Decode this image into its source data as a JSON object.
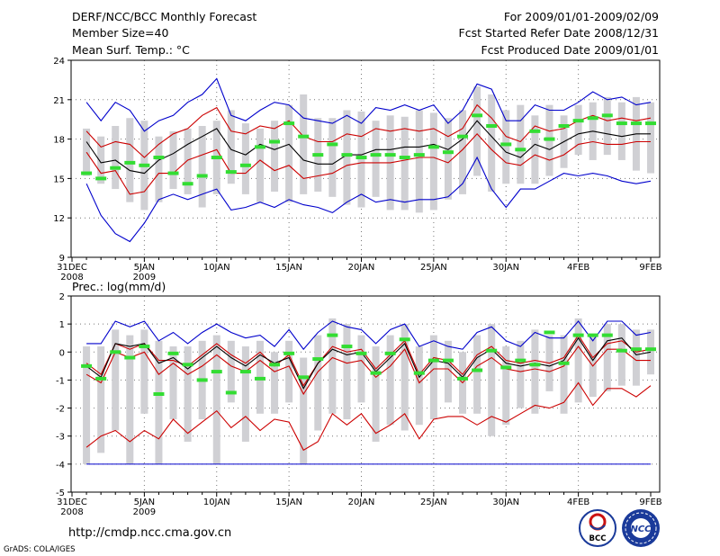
{
  "header": {
    "title": "DERF/NCC/BCC Monthly Forecast",
    "member_size": "Member Size=40",
    "var1_label": "Mean Surf. Temp.: °C",
    "period": "For 2009/01/01-2009/02/09",
    "started": "Fcst Started Refer Date 2008/12/31",
    "produced": "Fcst Produced Date 2009/01/01"
  },
  "footer": {
    "url": "http://cmdp.ncc.cma.gov.cn",
    "credit": "GrADS: COLA/IGES",
    "logo_bcc": "BCC",
    "logo_ncc": "NCC"
  },
  "colors": {
    "max_min": "#0000cc",
    "spread": "#cc0000",
    "mean": "#000000",
    "obs": "#33dd33",
    "box": "#d0d0d4",
    "grid": "#777777"
  },
  "chart_data": [
    {
      "type": "line",
      "title": "Mean Surf. Temp.: °C",
      "x_labels": [
        {
          "day": 0,
          "label": "31DEC",
          "sub": "2008"
        },
        {
          "day": 5,
          "label": "5JAN",
          "sub": "2009"
        },
        {
          "day": 10,
          "label": "10JAN",
          "sub": ""
        },
        {
          "day": 15,
          "label": "15JAN",
          "sub": ""
        },
        {
          "day": 20,
          "label": "20JAN",
          "sub": ""
        },
        {
          "day": 25,
          "label": "25JAN",
          "sub": ""
        },
        {
          "day": 30,
          "label": "30JAN",
          "sub": ""
        },
        {
          "day": 35,
          "label": "4FEB",
          "sub": ""
        },
        {
          "day": 40,
          "label": "9FEB",
          "sub": ""
        }
      ],
      "xlim": [
        0,
        40
      ],
      "ylim": [
        9,
        24
      ],
      "y_ticks": [
        9,
        12,
        15,
        18,
        21,
        24
      ],
      "days": [
        1,
        2,
        3,
        4,
        5,
        6,
        7,
        8,
        9,
        10,
        11,
        12,
        13,
        14,
        15,
        16,
        17,
        18,
        19,
        20,
        21,
        22,
        23,
        24,
        25,
        26,
        27,
        28,
        29,
        30,
        31,
        32,
        33,
        34,
        35,
        36,
        37,
        38,
        39,
        40
      ],
      "box_high": [
        18.8,
        18.2,
        19,
        19.6,
        19.4,
        18.2,
        18.6,
        18.8,
        19,
        19.4,
        20.2,
        19.2,
        18.8,
        19.4,
        20.6,
        21.4,
        19.6,
        19.6,
        20.2,
        20.1,
        19.4,
        19.8,
        19.7,
        20.2,
        20,
        19.6,
        20.2,
        22,
        21.4,
        20.2,
        20.6,
        19.8,
        20.6,
        19.8,
        20.6,
        20.8,
        21.2,
        20.8,
        21.2,
        20.8
      ],
      "box_low": [
        15.2,
        14.6,
        14.2,
        13.2,
        12.6,
        13.2,
        14.2,
        13.8,
        12.8,
        13.8,
        14.6,
        13.8,
        13.2,
        14,
        13.2,
        13.8,
        14,
        13.6,
        13,
        12.8,
        13.6,
        12.6,
        12.6,
        12.4,
        12.6,
        13.4,
        13.8,
        15.2,
        14,
        14.6,
        14.6,
        14.6,
        15.2,
        15.8,
        16.8,
        16.4,
        16.8,
        16.4,
        15.6,
        15.4
      ],
      "series": [
        {
          "name": "max",
          "color_key": "max_min",
          "values": [
            20.8,
            19.4,
            20.8,
            20.2,
            18.6,
            19.4,
            19.8,
            20.8,
            21.4,
            22.6,
            19.8,
            19.4,
            20.2,
            20.8,
            20.6,
            19.6,
            19.4,
            19.2,
            19.8,
            19.2,
            20.4,
            20.2,
            20.6,
            20.2,
            20.6,
            19.2,
            20.2,
            22.2,
            21.8,
            19.4,
            19.4,
            20.6,
            20.2,
            20.2,
            20.8,
            21.6,
            21,
            21.2,
            20.6,
            20.8
          ]
        },
        {
          "name": "spread_high",
          "color_key": "spread",
          "values": [
            18.6,
            17.4,
            17.8,
            17.6,
            16.6,
            17.6,
            18.4,
            18.8,
            19.8,
            20.4,
            18.6,
            18.4,
            19,
            18.8,
            19.4,
            18.2,
            17.8,
            17.8,
            18.4,
            18.2,
            18.8,
            18.6,
            18.8,
            18.6,
            18.8,
            18.2,
            18.8,
            20.6,
            19.6,
            18.2,
            17.8,
            19,
            18.6,
            18.8,
            19.4,
            19.8,
            19.4,
            19.6,
            19.4,
            19.6
          ]
        },
        {
          "name": "ensemble_mean",
          "color_key": "mean",
          "values": [
            17.8,
            16.2,
            16.4,
            15.6,
            15.4,
            16.4,
            16.9,
            17.6,
            18.2,
            18.8,
            17.2,
            16.8,
            17.6,
            17.2,
            17.6,
            16.4,
            16.1,
            16.1,
            16.8,
            16.8,
            17.2,
            17.2,
            17.4,
            17.4,
            17.6,
            17.2,
            18,
            19.4,
            18.2,
            17,
            16.6,
            17.6,
            17.2,
            17.8,
            18.4,
            18.6,
            18.4,
            18.2,
            18.4,
            18.4
          ]
        },
        {
          "name": "spread_low",
          "color_key": "spread",
          "values": [
            17,
            15.4,
            15.6,
            13.8,
            14,
            15.4,
            15.4,
            16.4,
            16.8,
            17.2,
            15.4,
            15.4,
            16.4,
            15.6,
            16,
            15,
            15.2,
            15.4,
            16,
            16.2,
            16.2,
            16.2,
            16.4,
            16.6,
            16.6,
            16.2,
            17.2,
            18.4,
            17.2,
            16.2,
            16,
            16.8,
            16.4,
            16.8,
            17.6,
            17.8,
            17.6,
            17.6,
            17.8,
            17.8
          ]
        },
        {
          "name": "min",
          "color_key": "max_min",
          "values": [
            14.6,
            12.2,
            10.8,
            10.2,
            11.6,
            13.4,
            13.8,
            13.4,
            13.8,
            14.2,
            12.6,
            12.8,
            13.2,
            12.8,
            13.4,
            13,
            12.8,
            12.4,
            13.2,
            13.8,
            13.2,
            13.4,
            13.2,
            13.4,
            13.4,
            13.6,
            14.6,
            16.6,
            14.2,
            12.8,
            14.2,
            14.2,
            14.8,
            15.4,
            15.2,
            15.4,
            15.2,
            14.8,
            14.6,
            14.8
          ]
        },
        {
          "name": "observed",
          "color_key": "obs",
          "style": "bars",
          "values": [
            15.4,
            15,
            15.8,
            16.2,
            16,
            16.6,
            15.4,
            14.6,
            15.2,
            16.6,
            15.5,
            16,
            17.4,
            17.8,
            19.2,
            18.2,
            16.8,
            17.6,
            16.8,
            16.6,
            16.8,
            16.8,
            16.6,
            16.8,
            17.4,
            17,
            18.2,
            19.8,
            19,
            17.6,
            17.2,
            18.6,
            18,
            19,
            19.4,
            19.6,
            19.8,
            19.2,
            19.2,
            19.2
          ]
        }
      ]
    },
    {
      "type": "line",
      "title": "Prec.: log(mm/d)",
      "x_labels": [
        {
          "day": 0,
          "label": "31DEC",
          "sub": "2008"
        },
        {
          "day": 5,
          "label": "5JAN",
          "sub": "2009"
        },
        {
          "day": 10,
          "label": "10JAN",
          "sub": ""
        },
        {
          "day": 15,
          "label": "15JAN",
          "sub": ""
        },
        {
          "day": 20,
          "label": "20JAN",
          "sub": ""
        },
        {
          "day": 25,
          "label": "25JAN",
          "sub": ""
        },
        {
          "day": 30,
          "label": "30JAN",
          "sub": ""
        },
        {
          "day": 35,
          "label": "4FEB",
          "sub": ""
        },
        {
          "day": 40,
          "label": "9FEB",
          "sub": ""
        }
      ],
      "xlim": [
        0,
        40
      ],
      "ylim": [
        -5,
        2
      ],
      "y_ticks": [
        -5,
        -4,
        -3,
        -2,
        -1,
        0,
        1,
        2
      ],
      "days": [
        1,
        2,
        3,
        4,
        5,
        6,
        7,
        8,
        9,
        10,
        11,
        12,
        13,
        14,
        15,
        16,
        17,
        18,
        19,
        20,
        21,
        22,
        23,
        24,
        25,
        26,
        27,
        28,
        29,
        30,
        31,
        32,
        33,
        34,
        35,
        36,
        37,
        38,
        39,
        40
      ],
      "box_high": [
        0.2,
        0.2,
        0.8,
        0.6,
        0.8,
        0.4,
        0.2,
        0.2,
        0.4,
        0.6,
        0.4,
        0.2,
        0.4,
        0,
        0.4,
        -0.2,
        0.6,
        1.2,
        1,
        0.6,
        0.2,
        0.6,
        1,
        0.2,
        0.6,
        0.4,
        0,
        0.6,
        1,
        0.2,
        0.4,
        0.8,
        0.6,
        0.6,
        1.2,
        0.6,
        1,
        1,
        0.8,
        0.8
      ],
      "box_low": [
        -4,
        -3.6,
        -2.8,
        -4,
        -2.2,
        -4,
        -2.4,
        -3.2,
        -2.4,
        -4,
        -1.8,
        -3.2,
        -2.2,
        -2.2,
        -1.8,
        -4,
        -2.8,
        -2.2,
        -2.4,
        -1.8,
        -3.2,
        -2.6,
        -2.8,
        -2.6,
        -2.4,
        -1.8,
        -2.2,
        -2.2,
        -3,
        -2.6,
        -2,
        -2.2,
        -1.4,
        -2.2,
        -1.8,
        -1.6,
        -1.4,
        -1.2,
        -1.2,
        -0.8
      ],
      "series": [
        {
          "name": "max",
          "color_key": "max_min",
          "values": [
            0.3,
            0.3,
            1.1,
            0.9,
            1.1,
            0.4,
            0.7,
            0.3,
            0.7,
            1,
            0.7,
            0.5,
            0.6,
            0.2,
            0.8,
            0.1,
            0.7,
            1.1,
            0.9,
            0.8,
            0.3,
            0.8,
            1,
            0.2,
            0.4,
            0.2,
            0.1,
            0.7,
            0.9,
            0.4,
            0.2,
            0.7,
            0.5,
            0.5,
            1.1,
            0.4,
            1.1,
            1.1,
            0.6,
            0.7
          ]
        },
        {
          "name": "spread_high",
          "color_key": "spread",
          "values": [
            -0.4,
            -0.8,
            0.3,
            0.1,
            0.3,
            -0.3,
            -0.3,
            -0.5,
            -0.1,
            0.3,
            -0.1,
            -0.4,
            0,
            -0.5,
            -0.1,
            -1.2,
            -0.4,
            0.2,
            0,
            0.1,
            -0.6,
            -0.1,
            0.4,
            -0.8,
            -0.2,
            -0.3,
            -0.8,
            -0.1,
            0.2,
            -0.3,
            -0.4,
            -0.3,
            -0.4,
            -0.2,
            0.6,
            -0.2,
            0.3,
            0.4,
            0,
            0.1
          ]
        },
        {
          "name": "ensemble_mean",
          "color_key": "mean",
          "values": [
            -0.5,
            -0.9,
            0.3,
            0.2,
            0.3,
            -0.4,
            -0.2,
            -0.6,
            -0.2,
            0.2,
            -0.2,
            -0.5,
            -0.1,
            -0.4,
            -0.2,
            -1.3,
            -0.4,
            0.1,
            -0.1,
            0,
            -0.7,
            -0.2,
            0.3,
            -0.9,
            -0.3,
            -0.4,
            -0.9,
            -0.2,
            0.1,
            -0.4,
            -0.5,
            -0.4,
            -0.5,
            -0.3,
            0.5,
            -0.3,
            0.4,
            0.5,
            -0.1,
            0
          ]
        },
        {
          "name": "spread_low",
          "color_key": "spread",
          "values": [
            -0.8,
            -1.1,
            0,
            -0.2,
            0,
            -0.8,
            -0.4,
            -0.8,
            -0.5,
            -0.1,
            -0.5,
            -0.7,
            -0.3,
            -0.7,
            -0.5,
            -1.5,
            -0.7,
            -0.2,
            -0.4,
            -0.3,
            -0.9,
            -0.5,
            0.1,
            -1.1,
            -0.6,
            -0.6,
            -1.1,
            -0.5,
            -0.2,
            -0.6,
            -0.7,
            -0.6,
            -0.7,
            -0.5,
            0.2,
            -0.5,
            0.1,
            0.1,
            -0.3,
            -0.3
          ]
        },
        {
          "name": "min",
          "color_key": "spread",
          "values": [
            -3.4,
            -3,
            -2.8,
            -3.2,
            -2.8,
            -3.1,
            -2.4,
            -2.9,
            -2.5,
            -2.1,
            -2.7,
            -2.3,
            -2.8,
            -2.4,
            -2.5,
            -3.5,
            -3.2,
            -2.2,
            -2.6,
            -2.2,
            -2.9,
            -2.6,
            -2.2,
            -3.1,
            -2.4,
            -2.3,
            -2.3,
            -2.6,
            -2.3,
            -2.5,
            -2.2,
            -1.9,
            -2,
            -1.8,
            -1.1,
            -1.9,
            -1.3,
            -1.3,
            -1.6,
            -1.2
          ]
        },
        {
          "name": "observed",
          "color_key": "obs",
          "style": "bars",
          "values": [
            -0.5,
            -0.95,
            0,
            -0.2,
            0.2,
            -1.5,
            -0.05,
            -0.45,
            -1,
            -0.7,
            -1.45,
            -0.7,
            -0.95,
            -0.45,
            -0.05,
            -0.9,
            -0.25,
            0.6,
            0.2,
            -0.05,
            -0.75,
            -0.05,
            0.45,
            -0.75,
            -0.3,
            -0.3,
            -0.95,
            -0.65,
            0.05,
            -0.55,
            -0.3,
            -0.45,
            0.7,
            -0.4,
            0.6,
            0.6,
            0.6,
            0.05,
            0.1,
            0.1
          ]
        }
      ]
    }
  ]
}
